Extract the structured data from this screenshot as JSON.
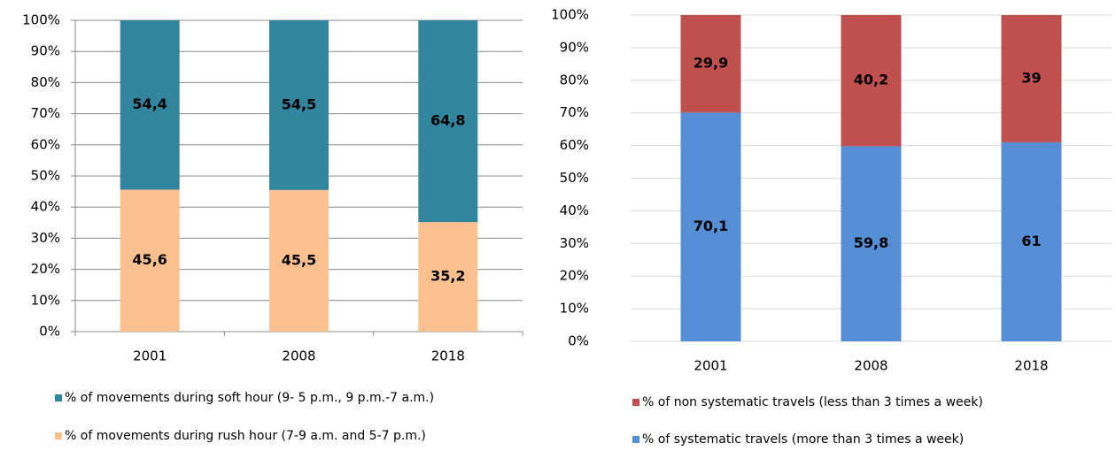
{
  "chart_data": [
    {
      "type": "stacked_bar",
      "categories": [
        "2001",
        "2008",
        "2018"
      ],
      "series": [
        {
          "name": "% of movements during soft hour (9- 5 p.m., 9 p.m.-7 a.m.)",
          "color": "#31859c",
          "label_color": "#ffffff",
          "values": [
            54.4,
            54.5,
            64.8
          ],
          "value_labels": [
            "54,4",
            "54,5",
            "64,8"
          ]
        },
        {
          "name": "% of movements during rush hour (7-9 a.m. and 5-7 p.m.)",
          "color": "#fac090",
          "label_color": "#000000",
          "values": [
            45.6,
            45.5,
            35.2
          ],
          "value_labels": [
            "45,6",
            "45,5",
            "35,2"
          ]
        }
      ],
      "ylim": [
        0,
        100
      ],
      "yticks": [
        {
          "value": 0,
          "label": "0%"
        },
        {
          "value": 10,
          "label": "10%"
        },
        {
          "value": 20,
          "label": "20%"
        },
        {
          "value": 30,
          "label": "30%"
        },
        {
          "value": 40,
          "label": "40%"
        },
        {
          "value": 50,
          "label": "50%"
        },
        {
          "value": 60,
          "label": "60%"
        },
        {
          "value": 70,
          "label": "70%"
        },
        {
          "value": 80,
          "label": "80%"
        },
        {
          "value": 90,
          "label": "90%"
        },
        {
          "value": 100,
          "label": "100%"
        }
      ],
      "grid": true,
      "legend": "bottom"
    },
    {
      "type": "stacked_bar",
      "categories": [
        "2001",
        "2008",
        "2018"
      ],
      "series": [
        {
          "name": "% of non systematic travels (less than 3 times a week)",
          "color": "#c0504d",
          "label_color": "#ffffff",
          "values": [
            29.9,
            40.2,
            39
          ],
          "value_labels": [
            "29,9",
            "40,2",
            "39"
          ]
        },
        {
          "name": "% of systematic travels (more than 3 times a week)",
          "color": "#558ed5",
          "label_color": "#ffffff",
          "values": [
            70.1,
            59.8,
            61
          ],
          "value_labels": [
            "70,1",
            "59,8",
            "61"
          ]
        }
      ],
      "ylim": [
        0,
        100
      ],
      "yticks": [
        {
          "value": 0,
          "label": "0%"
        },
        {
          "value": 10,
          "label": "10%"
        },
        {
          "value": 20,
          "label": "20%"
        },
        {
          "value": 30,
          "label": "30%"
        },
        {
          "value": 40,
          "label": "40%"
        },
        {
          "value": 50,
          "label": "50%"
        },
        {
          "value": 60,
          "label": "60%"
        },
        {
          "value": 70,
          "label": "70%"
        },
        {
          "value": 80,
          "label": "80%"
        },
        {
          "value": 90,
          "label": "90%"
        },
        {
          "value": 100,
          "label": "100%"
        }
      ],
      "grid": true,
      "legend": "bottom"
    }
  ]
}
